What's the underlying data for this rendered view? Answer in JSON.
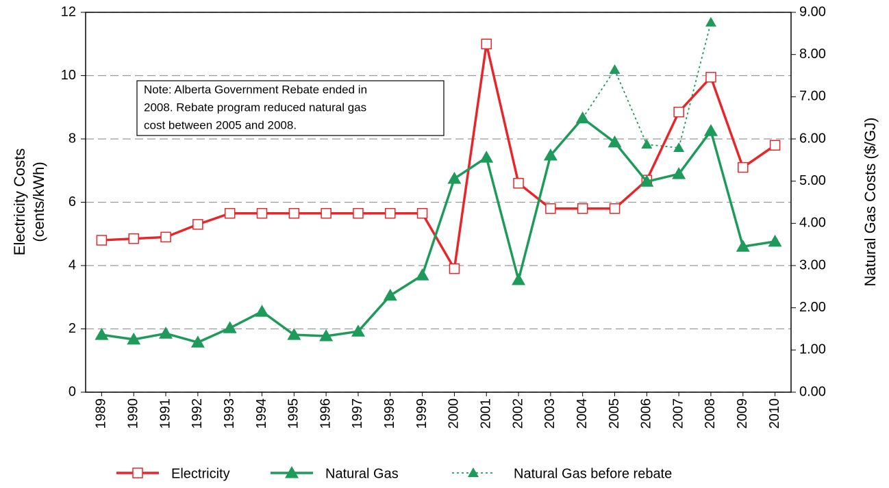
{
  "chart_data": {
    "type": "line",
    "y_label": [
      "Electricity Costs",
      "(cents/kWh)"
    ],
    "y2_label": "Natural Gas Costs ($/GJ)",
    "annotation": [
      "Note:  Alberta Government Rebate ended in",
      "2008.  Rebate program reduced natural gas",
      "cost between 2005 and 2008."
    ],
    "categories": [
      "1989",
      "1990",
      "1991",
      "1992",
      "1993",
      "1994",
      "1995",
      "1996",
      "1997",
      "1998",
      "1999",
      "2000",
      "2001",
      "2002",
      "2003",
      "2004",
      "2005",
      "2006",
      "2007",
      "2008",
      "2009",
      "2010"
    ],
    "series": [
      {
        "name": "Electricity",
        "color": "#e8262a",
        "marker": "square",
        "dash": false,
        "values": [
          4.8,
          4.85,
          4.9,
          5.3,
          5.65,
          5.65,
          5.65,
          5.65,
          5.65,
          5.65,
          5.65,
          3.9,
          11.0,
          6.6,
          5.8,
          5.8,
          5.8,
          6.7,
          8.85,
          9.95,
          7.1,
          7.8
        ]
      },
      {
        "name": "Natural Gas",
        "color": "#1e9a5a",
        "marker": "triangle",
        "dash": false,
        "axis": "y2",
        "values": [
          1.36,
          1.25,
          1.39,
          1.18,
          1.52,
          1.91,
          1.36,
          1.33,
          1.44,
          2.29,
          2.77,
          5.06,
          5.56,
          2.66,
          5.61,
          6.49,
          5.92,
          4.99,
          5.17,
          6.19,
          3.45,
          3.57
        ]
      },
      {
        "name": "Natural Gas before rebate",
        "color": "#1e9a5a",
        "marker": "triangle",
        "dash": true,
        "axis": "y2",
        "values": [
          null,
          null,
          null,
          null,
          null,
          null,
          null,
          null,
          null,
          null,
          null,
          null,
          null,
          null,
          null,
          6.49,
          7.64,
          5.87,
          5.79,
          8.76,
          null,
          null
        ]
      }
    ],
    "ylim": [
      0,
      12
    ],
    "yticks": [
      0,
      2,
      4,
      6,
      8,
      10,
      12
    ],
    "y2lim": [
      0,
      9
    ],
    "y2ticks": [
      {
        "value": 0,
        "label": "0.00"
      },
      {
        "value": 1,
        "label": "1.00"
      },
      {
        "value": 2,
        "label": "2.00"
      },
      {
        "value": 3,
        "label": "3.00"
      },
      {
        "value": 4,
        "label": "4.00"
      },
      {
        "value": 5,
        "label": "5.00"
      },
      {
        "value": 6,
        "label": "6.00"
      },
      {
        "value": 7,
        "label": "7.00"
      },
      {
        "value": 8,
        "label": "8.00"
      },
      {
        "value": 9,
        "label": "9.00"
      }
    ],
    "grid": true,
    "legend": "bottom"
  }
}
